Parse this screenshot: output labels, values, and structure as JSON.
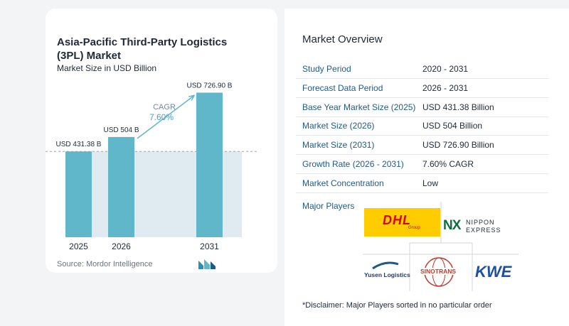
{
  "chart_data": {
    "type": "bar",
    "title": "Asia-Pacific Third-Party Logistics (3PL) Market",
    "subtitle": "Market Size in USD Billion",
    "categories": [
      "2025",
      "2026",
      "2031"
    ],
    "values": [
      431.38,
      504,
      726.9
    ],
    "value_labels": [
      "USD 431.38 B",
      "USD 504 B",
      "USD 726.90 B"
    ],
    "cagr_label": "CAGR",
    "cagr_value": "7.60%",
    "ylim": [
      0,
      800
    ],
    "grid": false,
    "colors": {
      "bar": "#5fb7c9",
      "band": "#dfeaf1",
      "arrow": "#5fb7c9"
    }
  },
  "source": "Source: Mordor Intelligence",
  "overview": {
    "title": "Market Overview",
    "rows": [
      {
        "label": "Study Period",
        "value": "2020 - 2031"
      },
      {
        "label": "Forecast Data Period",
        "value": "2026 - 2031"
      },
      {
        "label": "Base Year Market Size (2025)",
        "value": "USD 431.38 Billion"
      },
      {
        "label": "Market Size (2026)",
        "value": "USD 504 Billion"
      },
      {
        "label": "Market Size (2031)",
        "value": "USD 726.90 Billion"
      },
      {
        "label": "Growth Rate (2026 - 2031)",
        "value": "7.60% CAGR"
      },
      {
        "label": "Market Concentration",
        "value": "Low"
      }
    ],
    "players_label": "Major Players",
    "players": {
      "dhl": {
        "name": "DHL",
        "sub": "Group"
      },
      "nippon": {
        "mark": "NX",
        "line1": "NIPPON",
        "line2": "EXPRESS"
      },
      "yusen": {
        "name": "Yusen Logistics"
      },
      "sinotrans": {
        "name": "SINOTRANS"
      },
      "kwe": {
        "name": "KWE"
      }
    },
    "disclaimer": "*Disclaimer: Major Players sorted in no particular order"
  }
}
